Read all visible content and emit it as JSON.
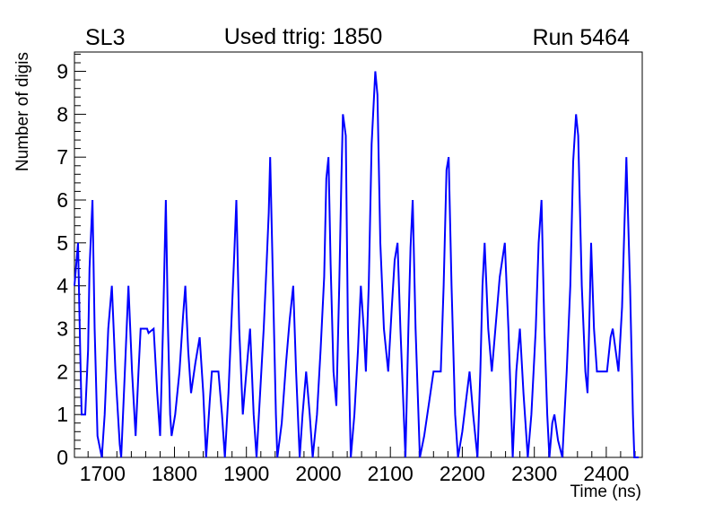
{
  "header": {
    "left_label": "SL3",
    "title": "Used ttrig: 1850",
    "right_label": "Run 5464"
  },
  "chart_data": {
    "type": "line",
    "title": "Used ttrig: 1850",
    "annotations": [
      "SL3",
      "Run 5464"
    ],
    "xlabel": "Time (ns)",
    "ylabel": "Number of digis",
    "xlim": [
      1661,
      2450
    ],
    "ylim": [
      0,
      9.45
    ],
    "x_major_ticks": [
      1700,
      1800,
      1900,
      2000,
      2100,
      2200,
      2300,
      2400
    ],
    "x_minor_step": 20,
    "y_major_ticks": [
      0,
      1,
      2,
      3,
      4,
      5,
      6,
      7,
      8,
      9
    ],
    "y_minor_step": 0.2,
    "grid": false,
    "legend_position": "none",
    "line_color": "#0000ff",
    "frame_color": "#000000",
    "series": [
      {
        "name": "number-of-digis-vs-time",
        "x": [
          1661,
          1664,
          1666,
          1669,
          1671,
          1676,
          1680,
          1682,
          1686,
          1689,
          1693,
          1699,
          1703,
          1708,
          1713,
          1718,
          1724,
          1726,
          1731,
          1736,
          1741,
          1746,
          1750,
          1753,
          1762,
          1764,
          1771,
          1776,
          1780,
          1784,
          1786,
          1788,
          1791,
          1794,
          1796,
          1801,
          1807,
          1812,
          1815,
          1819,
          1823,
          1829,
          1835,
          1840,
          1844,
          1849,
          1852,
          1861,
          1866,
          1870,
          1875,
          1880,
          1883,
          1886,
          1890,
          1895,
          1900,
          1905,
          1910,
          1914,
          1919,
          1924,
          1928,
          1931,
          1933,
          1937,
          1941,
          1943,
          1949,
          1955,
          1960,
          1965,
          1969,
          1974,
          1978,
          1983,
          1988,
          1992,
          1998,
          2003,
          2008,
          2011,
          2014,
          2017,
          2021,
          2025,
          2029,
          2032,
          2034,
          2038,
          2041,
          2045,
          2050,
          2055,
          2059,
          2063,
          2066,
          2070,
          2074,
          2079,
          2082,
          2086,
          2091,
          2097,
          2102,
          2106,
          2110,
          2114,
          2121,
          2125,
          2128,
          2131,
          2135,
          2141,
          2147,
          2154,
          2160,
          2170,
          2174,
          2178,
          2181,
          2185,
          2190,
          2194,
          2200,
          2205,
          2210,
          2215,
          2221,
          2225,
          2228,
          2231,
          2236,
          2241,
          2246,
          2252,
          2259,
          2264,
          2270,
          2275,
          2280,
          2285,
          2291,
          2296,
          2302,
          2306,
          2310,
          2314,
          2318,
          2321,
          2325,
          2328,
          2333,
          2339,
          2345,
          2350,
          2354,
          2358,
          2361,
          2366,
          2371,
          2374,
          2377,
          2379,
          2383,
          2387,
          2401,
          2406,
          2409,
          2413,
          2417,
          2422,
          2426,
          2428,
          2433,
          2437,
          2439,
          2445
        ],
        "y": [
          4,
          4.6,
          5,
          2.5,
          1,
          1,
          2.5,
          4.4,
          6,
          3,
          0.5,
          0,
          1,
          3,
          4,
          2,
          0.3,
          0,
          2,
          4,
          2,
          0.5,
          2,
          3,
          3,
          2.9,
          3,
          1.5,
          0.5,
          3,
          4.5,
          6,
          3,
          1,
          0.5,
          1,
          2,
          3.3,
          4,
          2.5,
          1.5,
          2.2,
          2.8,
          1.5,
          0,
          1.3,
          2,
          2,
          1,
          0,
          1.5,
          3.5,
          4.7,
          6,
          3,
          1,
          2,
          3,
          1,
          0,
          1.5,
          3,
          4.5,
          5.7,
          7,
          4,
          1,
          0,
          0.8,
          2.2,
          3.2,
          4,
          2,
          0,
          1,
          2,
          1,
          0,
          1,
          2.5,
          4.2,
          6.5,
          7,
          4.5,
          2,
          1.2,
          4,
          6.5,
          8,
          7.5,
          3,
          0,
          1,
          2.5,
          4,
          3,
          2,
          4,
          7.3,
          9,
          8.45,
          5,
          3,
          2,
          3.5,
          4.6,
          5,
          3,
          0,
          3,
          4.9,
          6,
          3,
          0,
          0.5,
          1.3,
          2,
          2,
          4,
          6.7,
          7,
          4,
          1,
          0,
          0.6,
          1.3,
          2,
          1,
          0,
          2,
          4,
          5,
          3,
          2,
          3,
          4.2,
          5,
          3,
          0,
          2,
          3,
          1.5,
          0,
          1,
          3,
          5,
          6,
          3,
          1,
          0,
          0.8,
          1,
          0.4,
          0,
          2,
          4,
          6.9,
          8,
          7.5,
          4,
          2,
          1.5,
          3.5,
          5,
          3,
          2,
          2,
          2.8,
          3,
          2.5,
          2,
          3.5,
          5.8,
          7,
          4,
          1,
          0,
          0
        ]
      }
    ]
  }
}
